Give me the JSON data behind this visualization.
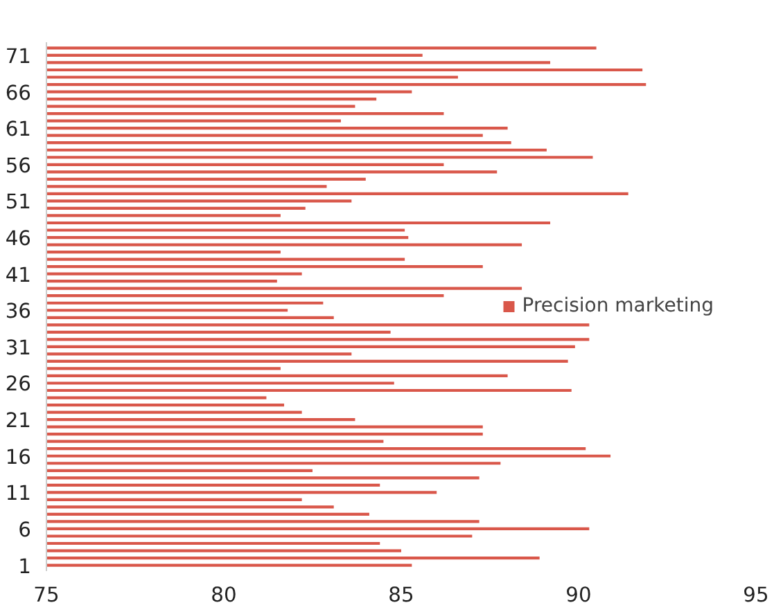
{
  "chart_data": {
    "type": "bar",
    "orientation": "horizontal",
    "legend": "right",
    "grid": false,
    "categories": [
      null,
      "71",
      null,
      null,
      null,
      null,
      "66",
      null,
      null,
      null,
      null,
      "61",
      null,
      null,
      null,
      null,
      "56",
      null,
      null,
      null,
      null,
      "51",
      null,
      null,
      null,
      null,
      "46",
      null,
      null,
      null,
      null,
      "41",
      null,
      null,
      null,
      null,
      "36",
      null,
      null,
      null,
      null,
      "31",
      null,
      null,
      null,
      null,
      "26",
      null,
      null,
      null,
      null,
      "21",
      null,
      null,
      null,
      null,
      "16",
      null,
      null,
      null,
      null,
      "11",
      null,
      null,
      null,
      null,
      "6",
      null,
      null,
      null,
      null,
      "1"
    ],
    "series": [
      {
        "name": "Precision marketing",
        "color": "#d9574a",
        "values": [
          90.5,
          85.6,
          89.2,
          91.8,
          86.6,
          91.9,
          85.3,
          84.3,
          83.7,
          86.2,
          83.3,
          88.0,
          87.3,
          88.1,
          89.1,
          90.4,
          86.2,
          87.7,
          84.0,
          82.9,
          91.4,
          83.6,
          82.3,
          81.6,
          89.2,
          85.1,
          85.2,
          88.4,
          81.6,
          85.1,
          87.3,
          82.2,
          81.5,
          88.4,
          86.2,
          82.8,
          81.8,
          83.1,
          90.3,
          84.7,
          90.3,
          89.9,
          83.6,
          89.7,
          81.6,
          88.0,
          84.8,
          89.8,
          81.2,
          81.7,
          82.2,
          83.7,
          87.3,
          87.3,
          84.5,
          90.2,
          90.9,
          87.8,
          82.5,
          87.2,
          84.4,
          86.0,
          82.2,
          83.1,
          84.1,
          87.2,
          90.3,
          87.0,
          84.4,
          85.0,
          88.9,
          85.3
        ]
      }
    ],
    "xlim": [
      75,
      95
    ],
    "xticks": [
      75,
      80,
      85,
      90,
      95
    ]
  }
}
